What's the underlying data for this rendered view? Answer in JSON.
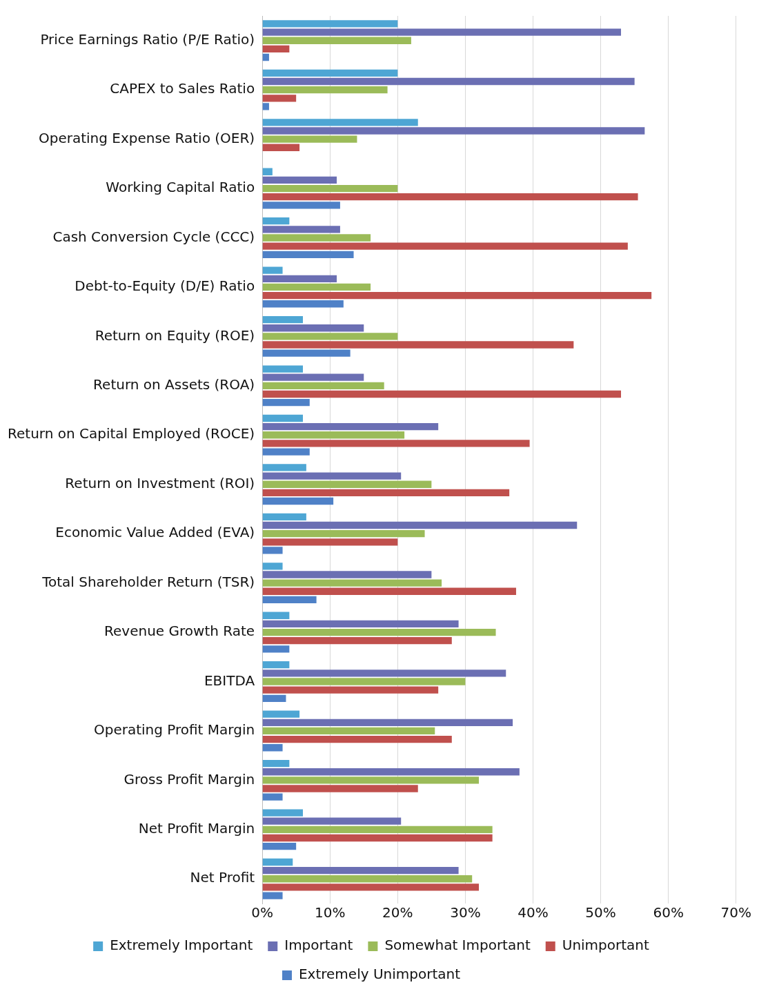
{
  "chart_data": {
    "type": "bar",
    "orientation": "horizontal",
    "categories": [
      "Price Earnings Ratio (P/E Ratio)",
      "CAPEX to Sales Ratio",
      "Operating Expense Ratio (OER)",
      "Working Capital Ratio",
      "Cash Conversion Cycle (CCC)",
      "Debt-to-Equity (D/E) Ratio",
      "Return on Equity (ROE)",
      "Return on Assets (ROA)",
      "Return on Capital Employed (ROCE)",
      "Return on Investment (ROI)",
      "Economic Value Added (EVA)",
      "Total Shareholder Return (TSR)",
      "Revenue Growth Rate",
      "EBITDA",
      "Operating Profit Margin",
      "Gross Profit Margin",
      "Net Profit Margin",
      "Net Profit"
    ],
    "series": [
      {
        "name": "Extremely Important",
        "color": "#4ea6d4",
        "values": [
          20,
          20,
          23,
          1.5,
          4,
          3,
          6,
          6,
          6,
          6.5,
          6.5,
          3,
          4,
          4,
          5.5,
          4,
          6,
          4.5
        ]
      },
      {
        "name": "Important",
        "color": "#6b6fb3",
        "values": [
          53,
          55,
          56.5,
          11,
          11.5,
          11,
          15,
          15,
          26,
          20.5,
          46.5,
          25,
          29,
          36,
          37,
          38,
          20.5,
          29
        ]
      },
      {
        "name": "Somewhat Important",
        "color": "#9bbb59",
        "values": [
          22,
          18.5,
          14,
          20,
          16,
          16,
          20,
          18,
          21,
          25,
          24,
          26.5,
          34.5,
          30,
          25.5,
          32,
          34,
          31
        ]
      },
      {
        "name": "Unimportant",
        "color": "#c0504d",
        "values": [
          4,
          5,
          5.5,
          55.5,
          54,
          57.5,
          46,
          53,
          39.5,
          36.5,
          20,
          37.5,
          28,
          26,
          28,
          23,
          34,
          32
        ]
      },
      {
        "name": "Extremely Unimportant",
        "color": "#4f81c7",
        "values": [
          1,
          1,
          0,
          11.5,
          13.5,
          12,
          13,
          7,
          7,
          10.5,
          3,
          8,
          4,
          3.5,
          3,
          3,
          5,
          3
        ]
      }
    ],
    "xlim": [
      0,
      70
    ],
    "xticks": [
      {
        "value": 0,
        "label": "0%"
      },
      {
        "value": 10,
        "label": "10%"
      },
      {
        "value": 20,
        "label": "20%"
      },
      {
        "value": 30,
        "label": "30%"
      },
      {
        "value": 40,
        "label": "40%"
      },
      {
        "value": 50,
        "label": "50%"
      },
      {
        "value": 60,
        "label": "60%"
      },
      {
        "value": 70,
        "label": "70%"
      }
    ],
    "grid": "x",
    "legend": "bottom"
  }
}
